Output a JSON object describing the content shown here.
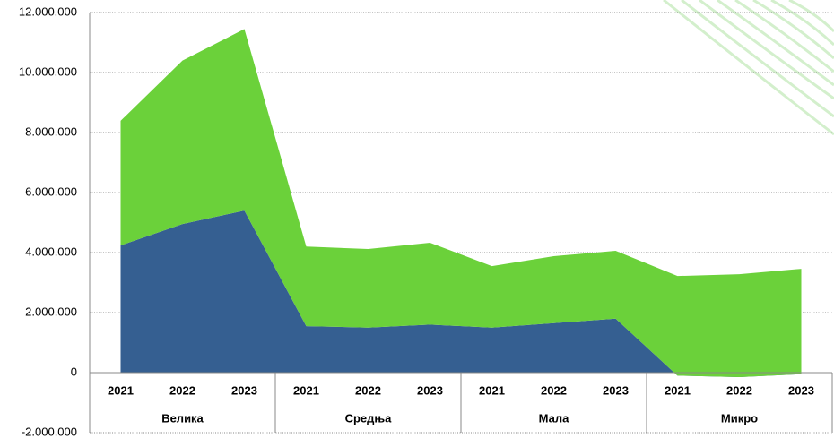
{
  "chart_data": {
    "type": "stacked_area",
    "categories": [
      "2021",
      "2022",
      "2023",
      "2021",
      "2022",
      "2023",
      "2021",
      "2022",
      "2023",
      "2021",
      "2022",
      "2023"
    ],
    "groups": [
      {
        "label": "Велика",
        "span": 3
      },
      {
        "label": "Средња",
        "span": 3
      },
      {
        "label": "Мала",
        "span": 3
      },
      {
        "label": "Микро",
        "span": 3
      }
    ],
    "series": [
      {
        "color": "#355f91",
        "values": [
          4240000,
          4950000,
          5400000,
          1550000,
          1500000,
          1600000,
          1500000,
          1650000,
          1800000,
          -100000,
          -150000,
          -50000
        ]
      },
      {
        "color": "#6bd13a",
        "values": [
          4150000,
          5450000,
          6050000,
          2650000,
          2620000,
          2730000,
          2050000,
          2230000,
          2260000,
          3320000,
          3430000,
          3510000
        ]
      }
    ],
    "ylim": [
      -2000000,
      12000000
    ],
    "yticks": [
      {
        "value": -2000000,
        "label": "-2.000.000"
      },
      0,
      {
        "value": 2000000,
        "label": "2.000.000"
      },
      {
        "value": 4000000,
        "label": "4.000.000"
      },
      {
        "value": 6000000,
        "label": "6.000.000"
      },
      {
        "value": 8000000,
        "label": "8.000.000"
      },
      {
        "value": 10000000,
        "label": "10.000.000"
      },
      {
        "value": 12000000,
        "label": "12.000.000"
      }
    ],
    "grid": true
  }
}
